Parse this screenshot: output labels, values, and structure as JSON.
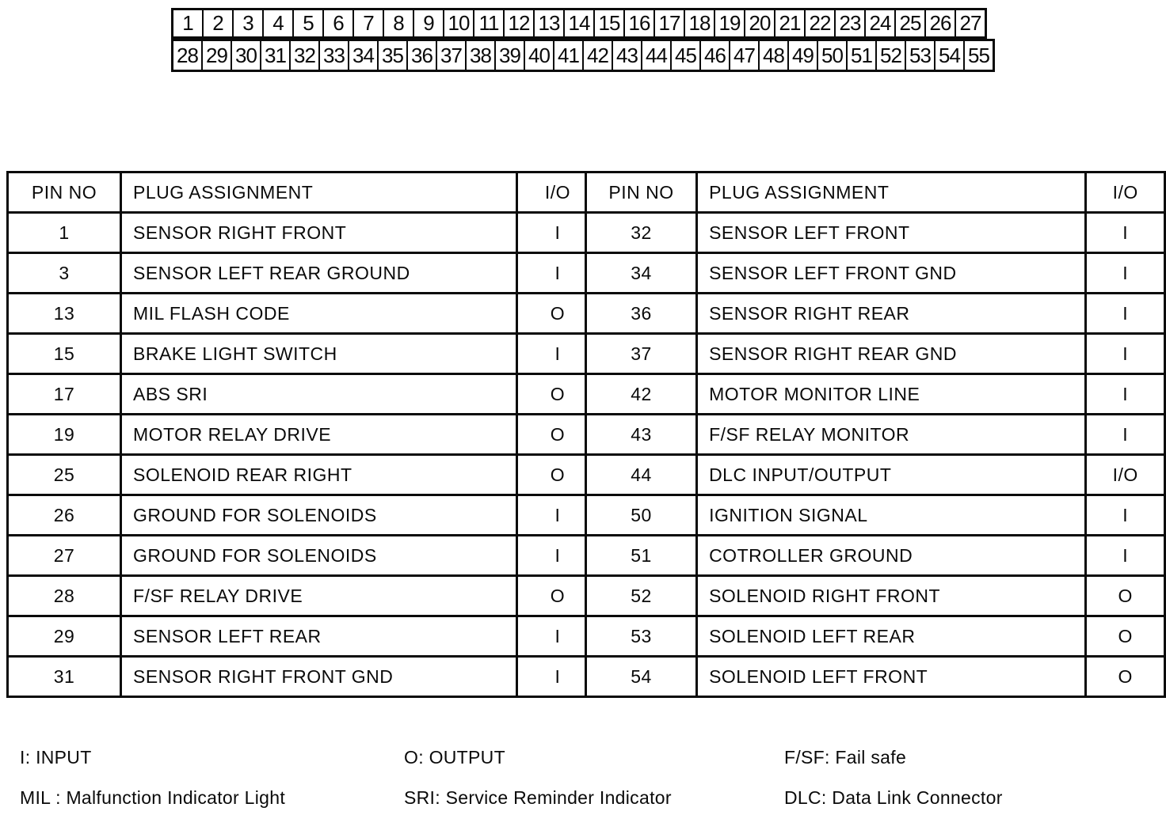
{
  "connector": {
    "top_row_pins": [
      "1",
      "2",
      "3",
      "4",
      "5",
      "6",
      "7",
      "8",
      "9",
      "10",
      "11",
      "12",
      "13",
      "14",
      "15",
      "16",
      "17",
      "18",
      "19",
      "20",
      "21",
      "22",
      "23",
      "24",
      "25",
      "26",
      "27"
    ],
    "bottom_row_pins": [
      "28",
      "29",
      "30",
      "31",
      "32",
      "33",
      "34",
      "35",
      "36",
      "37",
      "38",
      "39",
      "40",
      "41",
      "42",
      "43",
      "44",
      "45",
      "46",
      "47",
      "48",
      "49",
      "50",
      "51",
      "52",
      "53",
      "54",
      "55"
    ]
  },
  "pin_table": {
    "headers": {
      "pin": "PIN NO",
      "assignment": "PLUG ASSIGNMENT",
      "io": "I/O"
    },
    "left_rows": [
      {
        "pin": "1",
        "assignment": "SENSOR RIGHT FRONT",
        "io": "I"
      },
      {
        "pin": "3",
        "assignment": "SENSOR LEFT REAR GROUND",
        "io": "I"
      },
      {
        "pin": "13",
        "assignment": "MIL FLASH CODE",
        "io": "O"
      },
      {
        "pin": "15",
        "assignment": "BRAKE LIGHT SWITCH",
        "io": "I"
      },
      {
        "pin": "17",
        "assignment": "ABS SRI",
        "io": "O"
      },
      {
        "pin": "19",
        "assignment": "MOTOR RELAY DRIVE",
        "io": "O"
      },
      {
        "pin": "25",
        "assignment": "SOLENOID REAR RIGHT",
        "io": "O"
      },
      {
        "pin": "26",
        "assignment": "GROUND FOR SOLENOIDS",
        "io": "I"
      },
      {
        "pin": "27",
        "assignment": "GROUND FOR SOLENOIDS",
        "io": "I"
      },
      {
        "pin": "28",
        "assignment": "F/SF RELAY DRIVE",
        "io": "O"
      },
      {
        "pin": "29",
        "assignment": "SENSOR LEFT REAR",
        "io": "I"
      },
      {
        "pin": "31",
        "assignment": "SENSOR RIGHT FRONT GND",
        "io": "I"
      }
    ],
    "right_rows": [
      {
        "pin": "32",
        "assignment": "SENSOR LEFT FRONT",
        "io": "I"
      },
      {
        "pin": "34",
        "assignment": "SENSOR LEFT FRONT GND",
        "io": "I"
      },
      {
        "pin": "36",
        "assignment": "SENSOR RIGHT REAR",
        "io": "I"
      },
      {
        "pin": "37",
        "assignment": "SENSOR RIGHT REAR GND",
        "io": "I"
      },
      {
        "pin": "42",
        "assignment": "MOTOR MONITOR LINE",
        "io": "I"
      },
      {
        "pin": "43",
        "assignment": "F/SF RELAY MONITOR",
        "io": "I"
      },
      {
        "pin": "44",
        "assignment": "DLC INPUT/OUTPUT",
        "io": "I/O"
      },
      {
        "pin": "50",
        "assignment": "IGNITION SIGNAL",
        "io": "I"
      },
      {
        "pin": "51",
        "assignment": "COTROLLER GROUND",
        "io": "I"
      },
      {
        "pin": "52",
        "assignment": "SOLENOID RIGHT FRONT",
        "io": "O"
      },
      {
        "pin": "53",
        "assignment": "SOLENOID LEFT REAR",
        "io": "O"
      },
      {
        "pin": "54",
        "assignment": "SOLENOID LEFT FRONT",
        "io": "O"
      }
    ]
  },
  "legend": {
    "row1": [
      "I: INPUT",
      "O: OUTPUT",
      "F/SF: Fail safe"
    ],
    "row2": [
      "MIL : Malfunction Indicator Light",
      "SRI: Service Reminder Indicator",
      "DLC: Data Link Connector"
    ]
  },
  "colors": {
    "ink": "#0a0a0a",
    "paper": "#ffffff"
  }
}
